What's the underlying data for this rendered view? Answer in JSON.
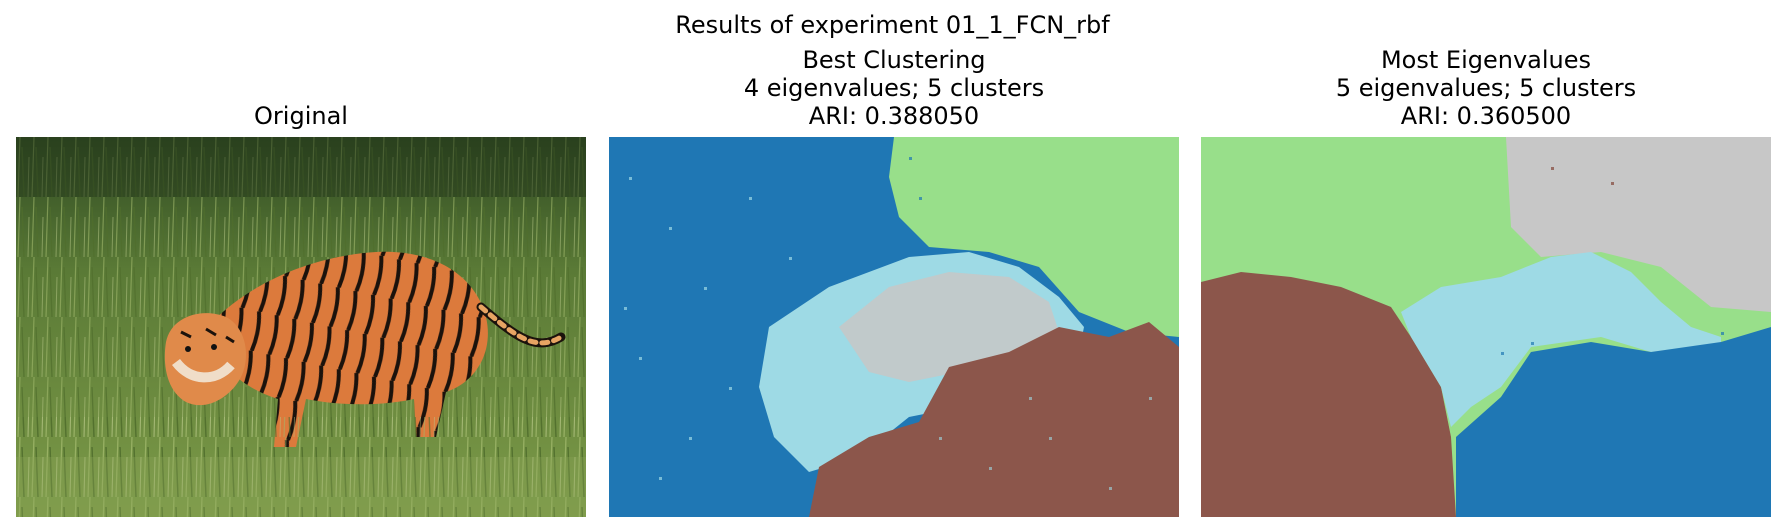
{
  "figure": {
    "suptitle": "Results of experiment 01_1_FCN_rbf"
  },
  "panels": [
    {
      "id": "original",
      "lines": [
        "Original"
      ],
      "image": "tiger walking through tall green grass (photograph)"
    },
    {
      "id": "best",
      "lines": [
        "Best Clustering",
        "4 eigenvalues; 5 clusters",
        "ARI: 0.388050"
      ]
    },
    {
      "id": "most",
      "lines": [
        "Most Eigenvalues",
        "5 eigenvalues; 5 clusters",
        "ARI: 0.360500"
      ]
    }
  ],
  "colors": {
    "cluster_blue": "#1f77b4",
    "cluster_green": "#98df8a",
    "cluster_lightblue": "#9edae5",
    "cluster_gray": "#c7c7c7",
    "cluster_brown": "#8c564b",
    "grass_dark": "#3f5e2a",
    "grass_light": "#7a9a4a",
    "tiger_orange": "#d9773a"
  }
}
